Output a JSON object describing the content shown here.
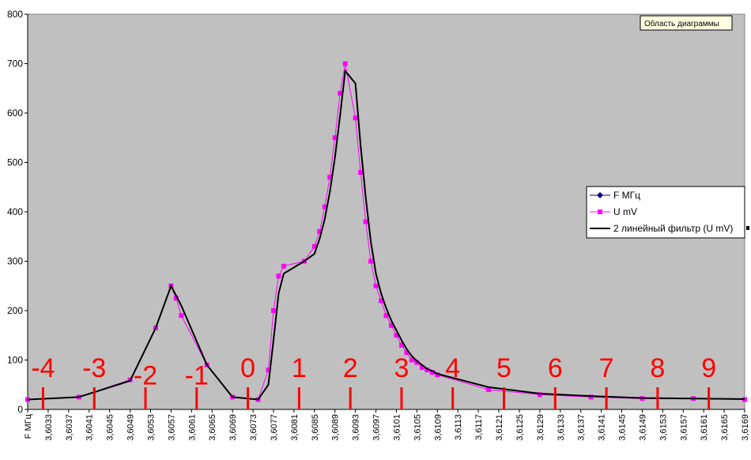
{
  "chart_data": {
    "type": "line",
    "x": [
      3.6029,
      3.6039,
      3.6049,
      3.6054,
      3.6057,
      3.6058,
      3.6059,
      3.6064,
      3.6069,
      3.6074,
      3.6076,
      3.6077,
      3.6078,
      3.6079,
      3.6083,
      3.6085,
      3.6086,
      3.6087,
      3.6088,
      3.6089,
      3.609,
      3.6091,
      3.6093,
      3.6094,
      3.6095,
      3.6096,
      3.6097,
      3.6098,
      3.6099,
      3.61,
      3.6101,
      3.6102,
      3.6103,
      3.6104,
      3.6105,
      3.6106,
      3.6107,
      3.6108,
      3.6109,
      3.6119,
      3.6129,
      3.6139,
      3.6149,
      3.6159,
      3.6169
    ],
    "series": [
      {
        "name": "F МГц",
        "color": "#000080",
        "marker": "diamond",
        "values": [
          null,
          null,
          null,
          null,
          null,
          null,
          null,
          null,
          null,
          null,
          null,
          null,
          null,
          null,
          null,
          null,
          null,
          null,
          null,
          null,
          null,
          null,
          null,
          null,
          null,
          null,
          null,
          null,
          null,
          null,
          null,
          null,
          null,
          null,
          null,
          null,
          null,
          null,
          null,
          null,
          null,
          null,
          null,
          null,
          null
        ]
      },
      {
        "name": "U mV",
        "color": "#ff00ff",
        "marker": "square",
        "values": [
          20,
          25,
          60,
          165,
          250,
          225,
          190,
          90,
          25,
          20,
          80,
          200,
          270,
          290,
          300,
          330,
          360,
          410,
          470,
          550,
          640,
          700,
          590,
          480,
          380,
          300,
          250,
          220,
          190,
          170,
          150,
          130,
          115,
          100,
          95,
          85,
          80,
          75,
          70,
          40,
          30,
          25,
          22,
          22,
          20
        ]
      },
      {
        "name": "2 линейный фильтр (U mV)",
        "color": "#000000",
        "marker": "none",
        "values": [
          20,
          25,
          58,
          165,
          250,
          230,
          210,
          90,
          25,
          20,
          50,
          140,
          235,
          275,
          300,
          315,
          345,
          385,
          440,
          510,
          595,
          685,
          660,
          535,
          430,
          340,
          275,
          235,
          205,
          180,
          160,
          140,
          122,
          108,
          98,
          90,
          82,
          78,
          72,
          45,
          32,
          27,
          23,
          22,
          21
        ]
      }
    ],
    "xlim": [
      3.6029,
      3.6169
    ],
    "ylim": [
      0,
      800
    ],
    "yticks": [
      0,
      100,
      200,
      300,
      400,
      500,
      600,
      700,
      800
    ],
    "xticks": [
      {
        "value": 3.6029,
        "label": "F МГц"
      },
      {
        "value": 3.6033,
        "label": "3,6033"
      },
      {
        "value": 3.6037,
        "label": "3,6037"
      },
      {
        "value": 3.6041,
        "label": "3,6041"
      },
      {
        "value": 3.6045,
        "label": "3,6045"
      },
      {
        "value": 3.6049,
        "label": "3,6049"
      },
      {
        "value": 3.6053,
        "label": "3,6053"
      },
      {
        "value": 3.6057,
        "label": "3,6057"
      },
      {
        "value": 3.6061,
        "label": "3,6061"
      },
      {
        "value": 3.6065,
        "label": "3,6065"
      },
      {
        "value": 3.6069,
        "label": "3,6069"
      },
      {
        "value": 3.6073,
        "label": "3,6073"
      },
      {
        "value": 3.6077,
        "label": "3,6077"
      },
      {
        "value": 3.6081,
        "label": "3,6081"
      },
      {
        "value": 3.6085,
        "label": "3,6085"
      },
      {
        "value": 3.6089,
        "label": "3,6089"
      },
      {
        "value": 3.6093,
        "label": "3,6093"
      },
      {
        "value": 3.6097,
        "label": "3,6097"
      },
      {
        "value": 3.6101,
        "label": "3,6101"
      },
      {
        "value": 3.6105,
        "label": "3,6105"
      },
      {
        "value": 3.6109,
        "label": "3,6109"
      },
      {
        "value": 3.6113,
        "label": "3,6113"
      },
      {
        "value": 3.6117,
        "label": "3,6117"
      },
      {
        "value": 3.6121,
        "label": "3,6121"
      },
      {
        "value": 3.6125,
        "label": "3,6125"
      },
      {
        "value": 3.6129,
        "label": "3,6129"
      },
      {
        "value": 3.6133,
        "label": "3,6133"
      },
      {
        "value": 3.6137,
        "label": "3,6137"
      },
      {
        "value": 3.6141,
        "label": "3,6141"
      },
      {
        "value": 3.6145,
        "label": "3,6145"
      },
      {
        "value": 3.6149,
        "label": "3,6149"
      },
      {
        "value": 3.6153,
        "label": "3,6153"
      },
      {
        "value": 3.6157,
        "label": "3,6157"
      },
      {
        "value": 3.6161,
        "label": "3,6161"
      },
      {
        "value": 3.6165,
        "label": "3,6165"
      },
      {
        "value": 3.6169,
        "label": "3,6169"
      }
    ],
    "annotations": [
      {
        "text": "-4",
        "x": 3.6032,
        "y": 85
      },
      {
        "text": "-3",
        "x": 3.6042,
        "y": 85
      },
      {
        "text": "-2",
        "x": 3.6052,
        "y": 70
      },
      {
        "text": "-1",
        "x": 3.6062,
        "y": 70
      },
      {
        "text": "0",
        "x": 3.6072,
        "y": 85
      },
      {
        "text": "1",
        "x": 3.6082,
        "y": 85
      },
      {
        "text": "2",
        "x": 3.6092,
        "y": 85
      },
      {
        "text": "3",
        "x": 3.6102,
        "y": 85
      },
      {
        "text": "4",
        "x": 3.6112,
        "y": 85
      },
      {
        "text": "5",
        "x": 3.6122,
        "y": 85
      },
      {
        "text": "6",
        "x": 3.6132,
        "y": 85
      },
      {
        "text": "7",
        "x": 3.6142,
        "y": 85
      },
      {
        "text": "8",
        "x": 3.6152,
        "y": 85
      },
      {
        "text": "9",
        "x": 3.6162,
        "y": 85
      }
    ],
    "annotation_color": "#ff0000",
    "tooltip": "Область диаграммы",
    "legend": "right",
    "grid": false,
    "background": "#c0c0c0"
  }
}
